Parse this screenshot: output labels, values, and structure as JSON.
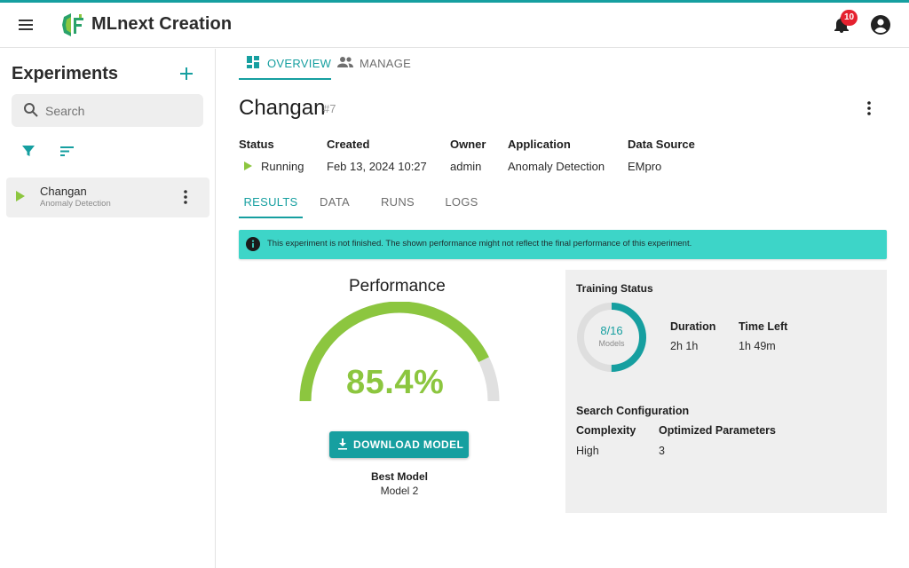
{
  "app": {
    "title": "MLnext Creation",
    "notification_count": "10",
    "accent_color": "#169fa0",
    "success_color": "#8cc63f"
  },
  "sidebar": {
    "title": "Experiments",
    "search_placeholder": "Search",
    "items": [
      {
        "name": "Changan",
        "subtitle": "Anomaly Detection",
        "status": "running"
      }
    ]
  },
  "main": {
    "tabs": [
      {
        "label": "OVERVIEW",
        "icon": "dashboard-icon",
        "active": true
      },
      {
        "label": "MANAGE",
        "icon": "people-icon",
        "active": false
      }
    ],
    "experiment": {
      "name": "Changan",
      "id": "#7"
    },
    "info": {
      "status_label": "Status",
      "status_value": "Running",
      "created_label": "Created",
      "created_value": "Feb 13, 2024 10:27",
      "owner_label": "Owner",
      "owner_value": "admin",
      "application_label": "Application",
      "application_value": "Anomaly Detection",
      "datasource_label": "Data Source",
      "datasource_value": "EMpro"
    },
    "subtabs": [
      "RESULTS",
      "DATA",
      "RUNS",
      "LOGS"
    ],
    "alert": "This experiment is not finished. The shown performance might not reflect the final performance of this experiment.",
    "performance": {
      "title": "Performance",
      "value_text": "85.4%",
      "value": 0.854,
      "download_label": "DOWNLOAD MODEL",
      "best_model_label": "Best Model",
      "best_model_value": "Model 2"
    },
    "training": {
      "title": "Training Status",
      "models_done": 8,
      "models_total": 16,
      "models_text": "8/16",
      "models_label": "Models",
      "duration_label": "Duration",
      "duration_value": "2h 1h",
      "time_left_label": "Time Left",
      "time_left_value": "1h 49m",
      "search_config_title": "Search Configuration",
      "complexity_label": "Complexity",
      "complexity_value": "High",
      "optimized_label": "Optimized Parameters",
      "optimized_value": "3"
    }
  }
}
